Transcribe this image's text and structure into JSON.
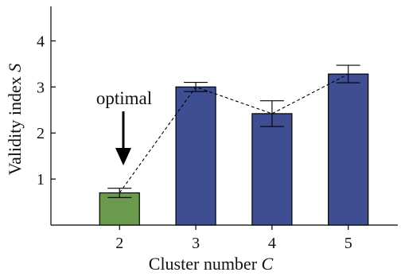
{
  "chart_data": {
    "type": "bar",
    "categories": [
      "2",
      "3",
      "4",
      "5"
    ],
    "values": [
      0.7,
      3.0,
      2.42,
      3.28
    ],
    "errors": [
      0.1,
      0.1,
      0.28,
      0.19
    ],
    "bar_colors": [
      "#6a9a4e",
      "#3f4d92",
      "#3f4d92",
      "#3f4d92"
    ],
    "xlabel_text": "Cluster number ",
    "xlabel_var": "C",
    "ylabel_text": "Validity index ",
    "ylabel_var": "S",
    "xlim": [
      1.1,
      5.65
    ],
    "ylim": [
      0,
      4.75
    ],
    "yticks": [
      1,
      2,
      3,
      4
    ],
    "annotation": {
      "text": "optimal",
      "target": "2"
    },
    "trend_line": "dashed",
    "grid": false
  }
}
